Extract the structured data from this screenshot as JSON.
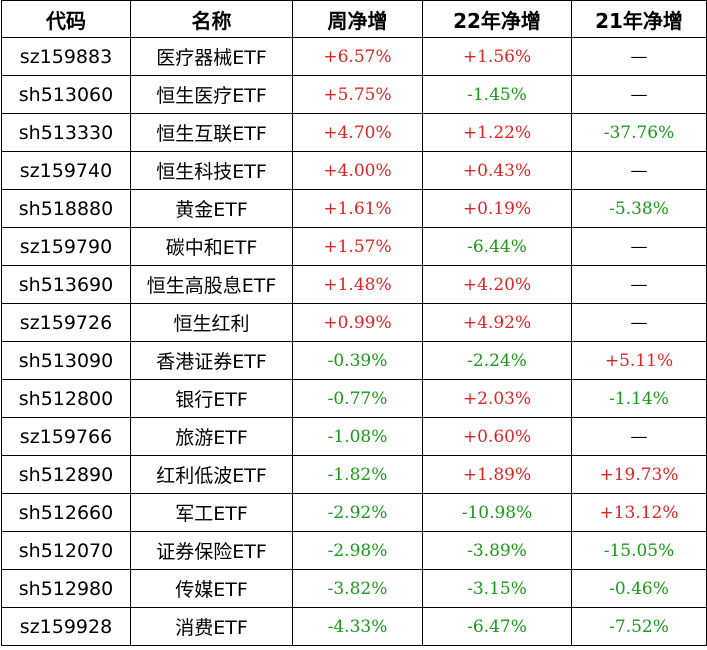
{
  "headers": [
    "代码",
    "名称",
    "周净增",
    "22年净增",
    "21年净增"
  ],
  "rows": [
    {
      "code": "sz159883",
      "name": "医疗器械ETF",
      "week": "+6.57%",
      "y22": "+1.56%",
      "y21": "—"
    },
    {
      "code": "sh513060",
      "name": "恒生医疗ETF",
      "week": "+5.75%",
      "y22": "-1.45%",
      "y21": "—"
    },
    {
      "code": "sh513330",
      "name": "恒生互联ETF",
      "week": "+4.70%",
      "y22": "+1.22%",
      "y21": "-37.76%"
    },
    {
      "code": "sz159740",
      "name": "恒生科技ETF",
      "week": "+4.00%",
      "y22": "+0.43%",
      "y21": "—"
    },
    {
      "code": "sh518880",
      "name": "黄金ETF",
      "week": "+1.61%",
      "y22": "+0.19%",
      "y21": "-5.38%"
    },
    {
      "code": "sz159790",
      "name": "碳中和ETF",
      "week": "+1.57%",
      "y22": "-6.44%",
      "y21": "—"
    },
    {
      "code": "sh513690",
      "name": "恒生高股息ETF",
      "week": "+1.48%",
      "y22": "+4.20%",
      "y21": "—"
    },
    {
      "code": "sz159726",
      "name": "恒生红利",
      "week": "+0.99%",
      "y22": "+4.92%",
      "y21": "—"
    },
    {
      "code": "sh513090",
      "name": "香港证券ETF",
      "week": "-0.39%",
      "y22": "-2.24%",
      "y21": "+5.11%"
    },
    {
      "code": "sh512800",
      "name": "银行ETF",
      "week": "-0.77%",
      "y22": "+2.03%",
      "y21": "-1.14%"
    },
    {
      "code": "sz159766",
      "name": "旅游ETF",
      "week": "-1.08%",
      "y22": "+0.60%",
      "y21": "—"
    },
    {
      "code": "sh512890",
      "name": "红利低波ETF",
      "week": "-1.82%",
      "y22": "+1.89%",
      "y21": "+19.73%"
    },
    {
      "code": "sh512660",
      "name": "军工ETF",
      "week": "-2.92%",
      "y22": "-10.98%",
      "y21": "+13.12%"
    },
    {
      "code": "sh512070",
      "name": "证券保险ETF",
      "week": "-2.98%",
      "y22": "-3.89%",
      "y21": "-15.05%"
    },
    {
      "code": "sh512980",
      "name": "传媒ETF",
      "week": "-3.82%",
      "y22": "-3.15%",
      "y21": "-0.46%"
    },
    {
      "code": "sz159928",
      "name": "消费ETF",
      "week": "-4.33%",
      "y22": "-6.47%",
      "y21": "-7.52%"
    }
  ],
  "colors": {
    "positive": "#e02424",
    "negative": "#1a9a1a",
    "border": "#000000"
  }
}
